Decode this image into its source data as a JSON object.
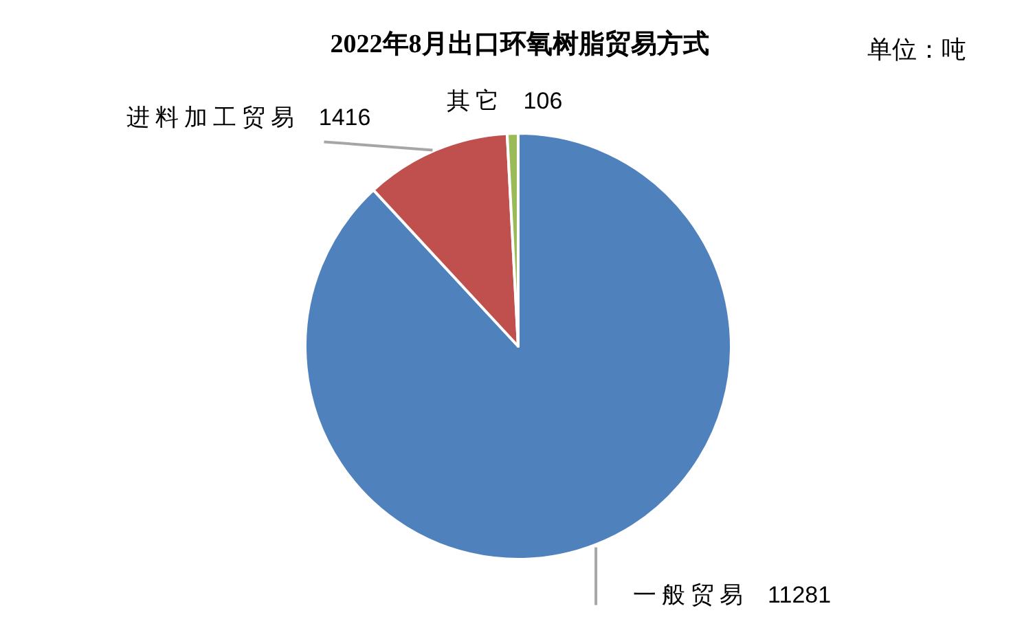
{
  "chart_data": {
    "type": "pie",
    "title": "2022年8月出口环氧树脂贸易方式",
    "annotations": [
      "单位：吨"
    ],
    "categories": [
      "一般贸易",
      "进料加工贸易",
      "其它"
    ],
    "values": [
      11281,
      1416,
      106
    ],
    "colors": [
      "#4f81bd",
      "#c0504d",
      "#9bbb59"
    ],
    "data_labels": true
  }
}
